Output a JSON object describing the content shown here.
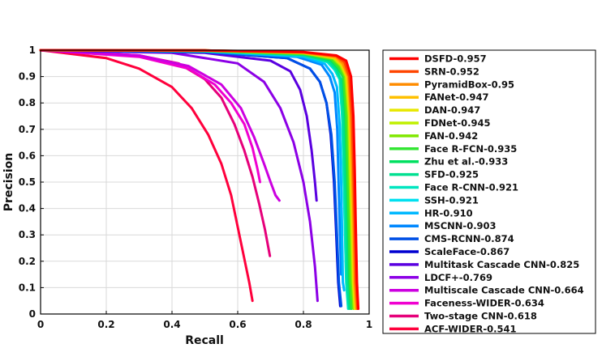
{
  "chart_data": {
    "type": "line",
    "xlabel": "Recall",
    "ylabel": "Precision",
    "xlim": [
      0,
      1
    ],
    "ylim": [
      0,
      1
    ],
    "x_ticks": [
      "0",
      "0.2",
      "0.4",
      "0.6",
      "0.8",
      "1"
    ],
    "y_ticks": [
      "0",
      "0.1",
      "0.2",
      "0.3",
      "0.4",
      "0.5",
      "0.6",
      "0.7",
      "0.8",
      "0.9",
      "1"
    ],
    "grid": true,
    "legend_position": "right, outside plot",
    "series": [
      {
        "name": "DSFD-0.957",
        "color": "#ff0000",
        "points": [
          [
            0,
            1
          ],
          [
            0.5,
            0.999
          ],
          [
            0.8,
            0.993
          ],
          [
            0.9,
            0.98
          ],
          [
            0.93,
            0.96
          ],
          [
            0.945,
            0.9
          ],
          [
            0.952,
            0.75
          ],
          [
            0.956,
            0.55
          ],
          [
            0.959,
            0.35
          ],
          [
            0.963,
            0.12
          ],
          [
            0.967,
            0.02
          ]
        ]
      },
      {
        "name": "SRN-0.952",
        "color": "#ff4500",
        "points": [
          [
            0,
            1
          ],
          [
            0.5,
            0.999
          ],
          [
            0.8,
            0.992
          ],
          [
            0.9,
            0.978
          ],
          [
            0.925,
            0.955
          ],
          [
            0.94,
            0.9
          ],
          [
            0.948,
            0.75
          ],
          [
            0.952,
            0.55
          ],
          [
            0.956,
            0.35
          ],
          [
            0.96,
            0.12
          ],
          [
            0.965,
            0.02
          ]
        ]
      },
      {
        "name": "PyramidBox-0.95",
        "color": "#ff8c00",
        "points": [
          [
            0,
            1
          ],
          [
            0.5,
            0.999
          ],
          [
            0.8,
            0.991
          ],
          [
            0.9,
            0.975
          ],
          [
            0.92,
            0.95
          ],
          [
            0.937,
            0.9
          ],
          [
            0.945,
            0.75
          ],
          [
            0.949,
            0.55
          ],
          [
            0.953,
            0.35
          ],
          [
            0.957,
            0.12
          ],
          [
            0.962,
            0.02
          ]
        ]
      },
      {
        "name": "FANet-0.947",
        "color": "#ffc000",
        "points": [
          [
            0,
            1
          ],
          [
            0.5,
            0.999
          ],
          [
            0.8,
            0.99
          ],
          [
            0.895,
            0.972
          ],
          [
            0.918,
            0.945
          ],
          [
            0.934,
            0.9
          ],
          [
            0.942,
            0.75
          ],
          [
            0.946,
            0.55
          ],
          [
            0.95,
            0.35
          ],
          [
            0.954,
            0.12
          ],
          [
            0.96,
            0.02
          ]
        ]
      },
      {
        "name": "DAN-0.947",
        "color": "#e8e800",
        "points": [
          [
            0,
            1
          ],
          [
            0.5,
            0.999
          ],
          [
            0.8,
            0.99
          ],
          [
            0.895,
            0.972
          ],
          [
            0.917,
            0.945
          ],
          [
            0.933,
            0.9
          ],
          [
            0.941,
            0.75
          ],
          [
            0.945,
            0.55
          ],
          [
            0.949,
            0.35
          ],
          [
            0.953,
            0.12
          ],
          [
            0.958,
            0.02
          ]
        ]
      },
      {
        "name": "FDNet-0.945",
        "color": "#c0f000",
        "points": [
          [
            0,
            1
          ],
          [
            0.5,
            0.999
          ],
          [
            0.8,
            0.989
          ],
          [
            0.892,
            0.97
          ],
          [
            0.915,
            0.942
          ],
          [
            0.93,
            0.9
          ],
          [
            0.939,
            0.75
          ],
          [
            0.943,
            0.55
          ],
          [
            0.947,
            0.35
          ],
          [
            0.951,
            0.12
          ],
          [
            0.956,
            0.02
          ]
        ]
      },
      {
        "name": "FAN-0.942",
        "color": "#80e800",
        "points": [
          [
            0,
            1
          ],
          [
            0.5,
            0.998
          ],
          [
            0.8,
            0.988
          ],
          [
            0.89,
            0.968
          ],
          [
            0.912,
            0.94
          ],
          [
            0.927,
            0.9
          ],
          [
            0.936,
            0.75
          ],
          [
            0.94,
            0.55
          ],
          [
            0.944,
            0.35
          ],
          [
            0.948,
            0.12
          ],
          [
            0.953,
            0.02
          ]
        ]
      },
      {
        "name": "Face R-FCN-0.935",
        "color": "#33e633",
        "points": [
          [
            0,
            1
          ],
          [
            0.5,
            0.998
          ],
          [
            0.8,
            0.986
          ],
          [
            0.885,
            0.965
          ],
          [
            0.907,
            0.935
          ],
          [
            0.922,
            0.9
          ],
          [
            0.93,
            0.75
          ],
          [
            0.934,
            0.55
          ],
          [
            0.938,
            0.35
          ],
          [
            0.942,
            0.12
          ],
          [
            0.947,
            0.02
          ]
        ]
      },
      {
        "name": "Zhu et al.-0.933",
        "color": "#00e060",
        "points": [
          [
            0,
            1
          ],
          [
            0.5,
            0.998
          ],
          [
            0.8,
            0.985
          ],
          [
            0.883,
            0.963
          ],
          [
            0.905,
            0.932
          ],
          [
            0.92,
            0.9
          ],
          [
            0.928,
            0.75
          ],
          [
            0.932,
            0.55
          ],
          [
            0.936,
            0.35
          ],
          [
            0.94,
            0.12
          ],
          [
            0.945,
            0.02
          ]
        ]
      },
      {
        "name": "SFD-0.925",
        "color": "#00e090",
        "points": [
          [
            0,
            1
          ],
          [
            0.5,
            0.997
          ],
          [
            0.8,
            0.982
          ],
          [
            0.878,
            0.958
          ],
          [
            0.9,
            0.928
          ],
          [
            0.914,
            0.89
          ],
          [
            0.922,
            0.75
          ],
          [
            0.926,
            0.55
          ],
          [
            0.93,
            0.35
          ],
          [
            0.934,
            0.12
          ],
          [
            0.94,
            0.02
          ]
        ]
      },
      {
        "name": "Face R-CNN-0.921",
        "color": "#00e6c0",
        "points": [
          [
            0,
            1
          ],
          [
            0.5,
            0.997
          ],
          [
            0.8,
            0.98
          ],
          [
            0.875,
            0.955
          ],
          [
            0.897,
            0.925
          ],
          [
            0.911,
            0.89
          ],
          [
            0.918,
            0.75
          ],
          [
            0.922,
            0.55
          ],
          [
            0.926,
            0.35
          ],
          [
            0.93,
            0.12
          ],
          [
            0.936,
            0.02
          ]
        ]
      },
      {
        "name": "SSH-0.921",
        "color": "#00e0f0",
        "points": [
          [
            0,
            1
          ],
          [
            0.5,
            0.997
          ],
          [
            0.8,
            0.98
          ],
          [
            0.873,
            0.955
          ],
          [
            0.895,
            0.925
          ],
          [
            0.91,
            0.89
          ],
          [
            0.918,
            0.75
          ],
          [
            0.922,
            0.55
          ],
          [
            0.926,
            0.35
          ],
          [
            0.93,
            0.14
          ],
          [
            0.934,
            0.08
          ]
        ]
      },
      {
        "name": "HR-0.910",
        "color": "#00b8ff",
        "points": [
          [
            0,
            1
          ],
          [
            0.5,
            0.996
          ],
          [
            0.8,
            0.975
          ],
          [
            0.865,
            0.948
          ],
          [
            0.888,
            0.91
          ],
          [
            0.902,
            0.86
          ],
          [
            0.91,
            0.72
          ],
          [
            0.914,
            0.55
          ],
          [
            0.917,
            0.35
          ],
          [
            0.92,
            0.12
          ],
          [
            0.924,
            0.09
          ]
        ]
      },
      {
        "name": "MSCNN-0.903",
        "color": "#0088ff",
        "points": [
          [
            0,
            1
          ],
          [
            0.5,
            0.995
          ],
          [
            0.78,
            0.975
          ],
          [
            0.855,
            0.945
          ],
          [
            0.88,
            0.9
          ],
          [
            0.895,
            0.84
          ],
          [
            0.903,
            0.7
          ],
          [
            0.907,
            0.5
          ],
          [
            0.911,
            0.3
          ],
          [
            0.915,
            0.15
          ]
        ]
      },
      {
        "name": "CMS-RCNN-0.874",
        "color": "#0050e6",
        "points": [
          [
            0,
            1
          ],
          [
            0.5,
            0.993
          ],
          [
            0.75,
            0.97
          ],
          [
            0.82,
            0.93
          ],
          [
            0.85,
            0.88
          ],
          [
            0.87,
            0.8
          ],
          [
            0.885,
            0.68
          ],
          [
            0.895,
            0.5
          ],
          [
            0.902,
            0.3
          ],
          [
            0.908,
            0.12
          ],
          [
            0.915,
            0.03
          ]
        ]
      },
      {
        "name": "ScaleFace-0.867",
        "color": "#0000d0",
        "points": [
          [
            0,
            1
          ],
          [
            0.5,
            0.993
          ],
          [
            0.75,
            0.97
          ],
          [
            0.82,
            0.93
          ],
          [
            0.85,
            0.88
          ],
          [
            0.87,
            0.8
          ],
          [
            0.883,
            0.68
          ],
          [
            0.893,
            0.5
          ],
          [
            0.9,
            0.3
          ],
          [
            0.906,
            0.12
          ],
          [
            0.912,
            0.03
          ]
        ]
      },
      {
        "name": "Multitask Cascade CNN-0.825",
        "color": "#5a00e0",
        "points": [
          [
            0,
            1
          ],
          [
            0.5,
            0.99
          ],
          [
            0.7,
            0.96
          ],
          [
            0.76,
            0.92
          ],
          [
            0.79,
            0.85
          ],
          [
            0.81,
            0.75
          ],
          [
            0.825,
            0.62
          ],
          [
            0.835,
            0.5
          ],
          [
            0.84,
            0.43
          ]
        ]
      },
      {
        "name": "LDCF+-0.769",
        "color": "#8c00e6",
        "points": [
          [
            0,
            1
          ],
          [
            0.4,
            0.99
          ],
          [
            0.6,
            0.95
          ],
          [
            0.68,
            0.88
          ],
          [
            0.73,
            0.78
          ],
          [
            0.77,
            0.65
          ],
          [
            0.8,
            0.5
          ],
          [
            0.82,
            0.35
          ],
          [
            0.835,
            0.18
          ],
          [
            0.843,
            0.05
          ]
        ]
      },
      {
        "name": "Multiscale Cascade CNN-0.664",
        "color": "#cc00e0",
        "points": [
          [
            0,
            1
          ],
          [
            0.3,
            0.98
          ],
          [
            0.45,
            0.94
          ],
          [
            0.55,
            0.87
          ],
          [
            0.61,
            0.78
          ],
          [
            0.65,
            0.67
          ],
          [
            0.68,
            0.57
          ],
          [
            0.7,
            0.5
          ],
          [
            0.715,
            0.45
          ],
          [
            0.727,
            0.43
          ]
        ]
      },
      {
        "name": "Faceness-WIDER-0.634",
        "color": "#f000d0",
        "points": [
          [
            0,
            1
          ],
          [
            0.3,
            0.975
          ],
          [
            0.45,
            0.93
          ],
          [
            0.53,
            0.87
          ],
          [
            0.58,
            0.8
          ],
          [
            0.62,
            0.72
          ],
          [
            0.645,
            0.63
          ],
          [
            0.66,
            0.55
          ],
          [
            0.668,
            0.5
          ]
        ]
      },
      {
        "name": "Two-stage CNN-0.618",
        "color": "#e6007a",
        "points": [
          [
            0,
            1
          ],
          [
            0.3,
            0.98
          ],
          [
            0.42,
            0.95
          ],
          [
            0.5,
            0.89
          ],
          [
            0.55,
            0.82
          ],
          [
            0.59,
            0.72
          ],
          [
            0.62,
            0.62
          ],
          [
            0.645,
            0.52
          ],
          [
            0.665,
            0.42
          ],
          [
            0.683,
            0.32
          ],
          [
            0.698,
            0.22
          ]
        ]
      },
      {
        "name": "ACF-WIDER-0.541",
        "color": "#ff003c",
        "points": [
          [
            0,
            1
          ],
          [
            0.2,
            0.97
          ],
          [
            0.3,
            0.93
          ],
          [
            0.4,
            0.86
          ],
          [
            0.46,
            0.78
          ],
          [
            0.51,
            0.68
          ],
          [
            0.55,
            0.57
          ],
          [
            0.58,
            0.45
          ],
          [
            0.6,
            0.33
          ],
          [
            0.62,
            0.21
          ],
          [
            0.635,
            0.12
          ],
          [
            0.645,
            0.05
          ]
        ]
      }
    ]
  }
}
